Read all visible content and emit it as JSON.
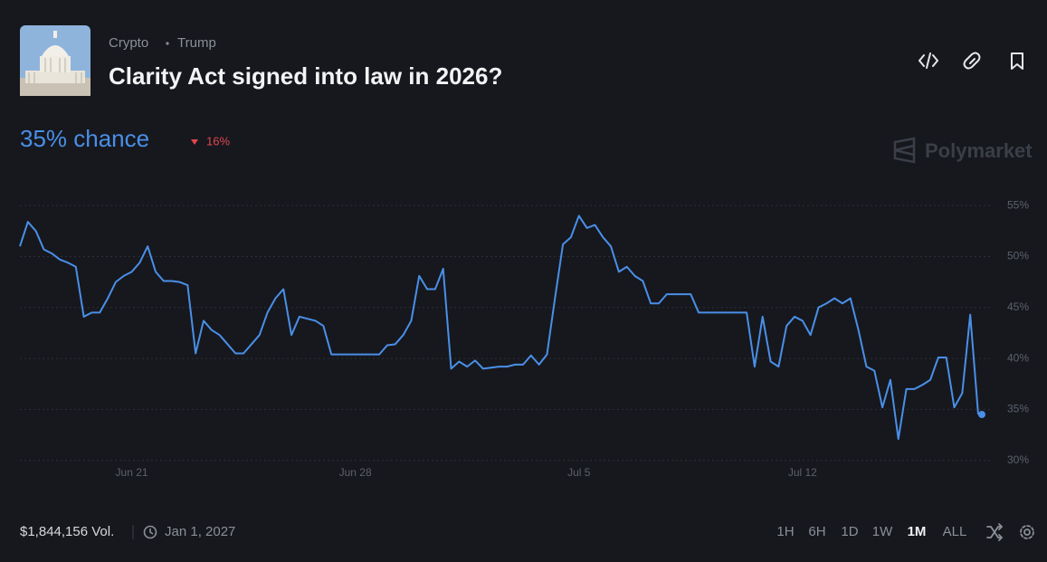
{
  "header": {
    "breadcrumb": [
      "Crypto",
      "Trump"
    ],
    "title": "Clarity Act signed into law in 2026?",
    "chance": "35% chance",
    "change": "16%",
    "watermark": "Polymarket"
  },
  "chart_data": {
    "type": "line",
    "categories": [
      null,
      null,
      null,
      null,
      null,
      null,
      null,
      null,
      null,
      null,
      null,
      null,
      null,
      null,
      "Jun 21",
      null,
      null,
      null,
      null,
      null,
      null,
      null,
      null,
      null,
      null,
      null,
      null,
      null,
      null,
      null,
      null,
      null,
      null,
      null,
      null,
      null,
      null,
      null,
      null,
      null,
      null,
      null,
      "Jun 28",
      null,
      null,
      null,
      null,
      null,
      null,
      null,
      null,
      null,
      null,
      null,
      null,
      null,
      null,
      null,
      null,
      null,
      null,
      null,
      null,
      null,
      null,
      null,
      null,
      null,
      null,
      null,
      "Jul 5",
      null,
      null,
      null,
      null,
      null,
      null,
      null,
      null,
      null,
      null,
      null,
      null,
      null,
      null,
      null,
      null,
      null,
      null,
      null,
      null,
      null,
      null,
      null,
      null,
      null,
      null,
      null,
      "Jul 12",
      null,
      null,
      null,
      null,
      null,
      null,
      null,
      null,
      null,
      null,
      null,
      null,
      null,
      null,
      null,
      null,
      null,
      null,
      null,
      null,
      null,
      null
    ],
    "series": [
      {
        "color": "#4a8fe7",
        "values": [
          51,
          53.4,
          52.5,
          50.7,
          50.3,
          49.7,
          49.4,
          49,
          44.1,
          44.5,
          44.5,
          45.9,
          47.5,
          48.1,
          48.5,
          49.4,
          51,
          48.5,
          47.6,
          47.6,
          47.5,
          47.2,
          40.5,
          43.7,
          42.8,
          42.3,
          41.4,
          40.5,
          40.5,
          41.4,
          42.3,
          44.5,
          45.9,
          46.8,
          42.3,
          44.1,
          43.9,
          43.7,
          43.2,
          40.4,
          40.4,
          40.4,
          40.4,
          40.4,
          40.4,
          40.4,
          41.3,
          41.4,
          42.3,
          43.7,
          48.1,
          46.8,
          46.8,
          48.8,
          39,
          39.7,
          39.2,
          39.8,
          39,
          39.1,
          39.2,
          39.2,
          39.4,
          39.4,
          40.3,
          39.4,
          40.4,
          45.9,
          51.2,
          51.9,
          54,
          52.8,
          53.1,
          51.9,
          51,
          48.5,
          49,
          48.1,
          47.6,
          45.4,
          45.4,
          46.3,
          46.3,
          46.3,
          46.3,
          44.5,
          44.5,
          44.5,
          44.5,
          44.5,
          44.5,
          44.5,
          39.2,
          44.1,
          39.7,
          39.2,
          43.2,
          44.1,
          43.7,
          42.3,
          45,
          45.4,
          45.9,
          45.4,
          45.9,
          42.8,
          39.2,
          38.8,
          35.2,
          37.9,
          32.1,
          37,
          37,
          37.4,
          37.9,
          40.1,
          40.1,
          35.2,
          36.6,
          44.3,
          34.5
        ]
      }
    ],
    "ylim": [
      29,
      57.5
    ],
    "yticks": [
      {
        "value": 30,
        "label": "30%"
      },
      {
        "value": 35,
        "label": "35%"
      },
      {
        "value": 40,
        "label": "40%"
      },
      {
        "value": 45,
        "label": "45%"
      },
      {
        "value": 50,
        "label": "50%"
      },
      {
        "value": 55,
        "label": "55%"
      }
    ],
    "grid": true
  },
  "footer": {
    "volume": "$1,844,156 Vol.",
    "end_date": "Jan 1, 2027",
    "ranges": [
      "1H",
      "6H",
      "1D",
      "1W",
      "1M",
      "ALL"
    ],
    "active_range": "1M"
  }
}
